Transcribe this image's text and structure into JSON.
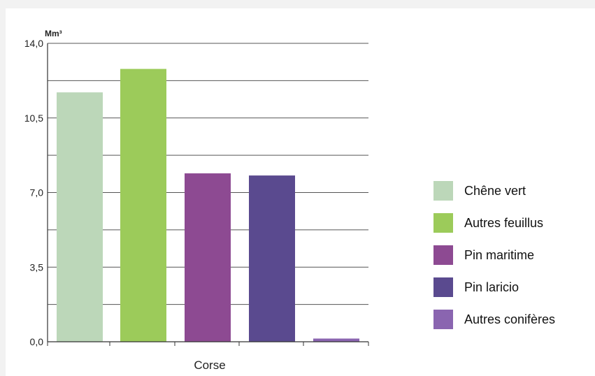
{
  "chart_data": {
    "type": "bar",
    "unit_label": "Mm³",
    "categories": [
      "Corse"
    ],
    "ylim": [
      0,
      14
    ],
    "yticks": [
      "0,0",
      "3,5",
      "7,0",
      "10,5",
      "14,0"
    ],
    "ytick_values": [
      0,
      3.5,
      7,
      10.5,
      14
    ],
    "grid": true,
    "legend_position": "right",
    "series": [
      {
        "name": "Chêne vert",
        "values": [
          11.7
        ],
        "color": "#bcd7b9"
      },
      {
        "name": "Autres feuillus",
        "values": [
          12.8
        ],
        "color": "#9ccb5a"
      },
      {
        "name": "Pin maritime",
        "values": [
          7.9
        ],
        "color": "#8d4a92"
      },
      {
        "name": "Pin laricio",
        "values": [
          7.8
        ],
        "color": "#5a4a8f"
      },
      {
        "name": "Autres conifères",
        "values": [
          0.15
        ],
        "color": "#8a65b0"
      }
    ]
  }
}
